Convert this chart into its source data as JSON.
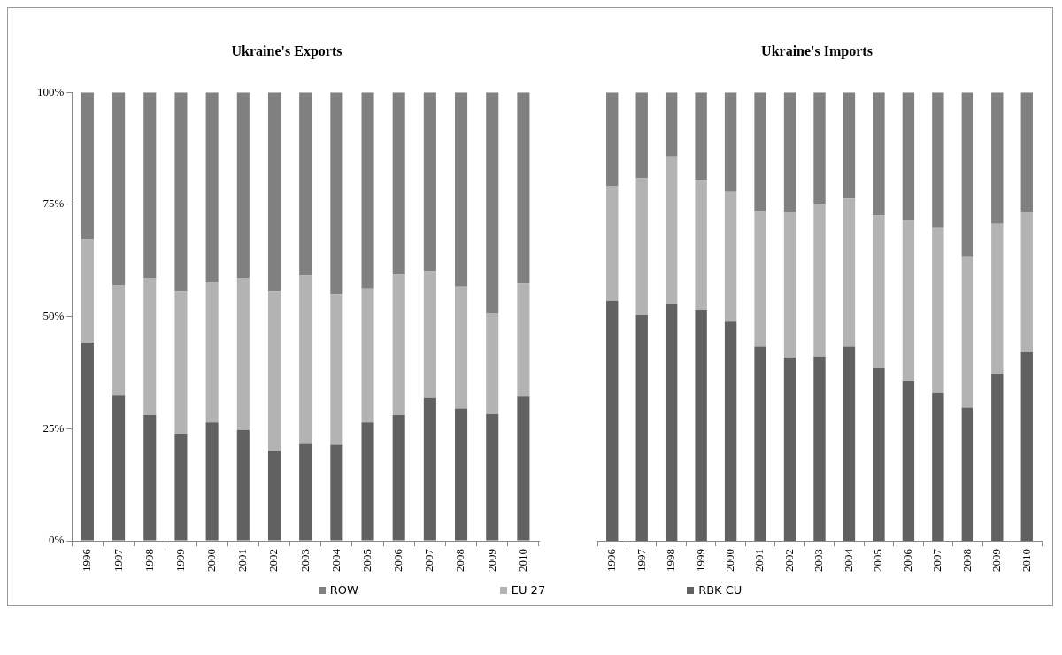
{
  "chart_data": [
    {
      "type": "bar",
      "title": "Ukraine's Exports",
      "stacked": true,
      "legend": "bottom",
      "grid": false,
      "categories": [
        "1996",
        "1997",
        "1998",
        "1999",
        "2000",
        "2001",
        "2002",
        "2003",
        "2004",
        "2005",
        "2006",
        "2007",
        "2008",
        "2009",
        "2010"
      ],
      "ylim": [
        0,
        100
      ],
      "yticks": [
        {
          "value": 0,
          "label": "0%"
        },
        {
          "value": 25,
          "label": "25%"
        },
        {
          "value": 50,
          "label": "50%"
        },
        {
          "value": 75,
          "label": "75%"
        },
        {
          "value": 100,
          "label": "100%"
        }
      ],
      "series": [
        {
          "name": "RBK CU",
          "color": "#616161",
          "values": [
            44.2,
            32.5,
            28.0,
            23.9,
            26.4,
            24.7,
            20.1,
            21.6,
            21.4,
            26.4,
            28.0,
            31.8,
            29.5,
            28.2,
            32.3
          ]
        },
        {
          "name": "EU 27",
          "color": "#b3b3b3",
          "values": [
            23.0,
            24.5,
            30.6,
            31.7,
            31.2,
            33.9,
            35.5,
            37.5,
            33.6,
            29.9,
            31.3,
            28.3,
            27.2,
            22.5,
            25.0
          ]
        },
        {
          "name": "ROW",
          "color": "#808080",
          "values": [
            32.8,
            43.0,
            41.4,
            44.4,
            42.4,
            41.4,
            44.4,
            40.9,
            45.0,
            43.7,
            40.7,
            39.9,
            43.3,
            49.3,
            42.7
          ]
        }
      ]
    },
    {
      "type": "bar",
      "title": "Ukraine's Imports",
      "stacked": true,
      "legend": "bottom",
      "grid": false,
      "tick_labels": "x",
      "categories": [
        "1996",
        "1997",
        "1998",
        "1999",
        "2000",
        "2001",
        "2002",
        "2003",
        "2004",
        "2005",
        "2006",
        "2007",
        "2008",
        "2009",
        "2010"
      ],
      "ylim": [
        0,
        100
      ],
      "series": [
        {
          "name": "RBK CU",
          "color": "#616161",
          "values": [
            53.5,
            50.3,
            52.7,
            51.5,
            48.9,
            43.3,
            40.9,
            41.1,
            43.3,
            38.5,
            35.5,
            33.0,
            29.7,
            37.3,
            42.1
          ]
        },
        {
          "name": "EU 27",
          "color": "#b3b3b3",
          "values": [
            25.6,
            30.5,
            33.0,
            29.0,
            28.9,
            30.2,
            32.4,
            34.1,
            33.0,
            34.0,
            36.0,
            36.7,
            33.7,
            33.4,
            31.2
          ]
        },
        {
          "name": "ROW",
          "color": "#808080",
          "values": [
            20.9,
            19.2,
            14.3,
            19.5,
            22.2,
            26.5,
            26.7,
            24.8,
            23.7,
            27.5,
            28.5,
            30.3,
            36.6,
            29.3,
            26.7
          ]
        }
      ]
    }
  ]
}
